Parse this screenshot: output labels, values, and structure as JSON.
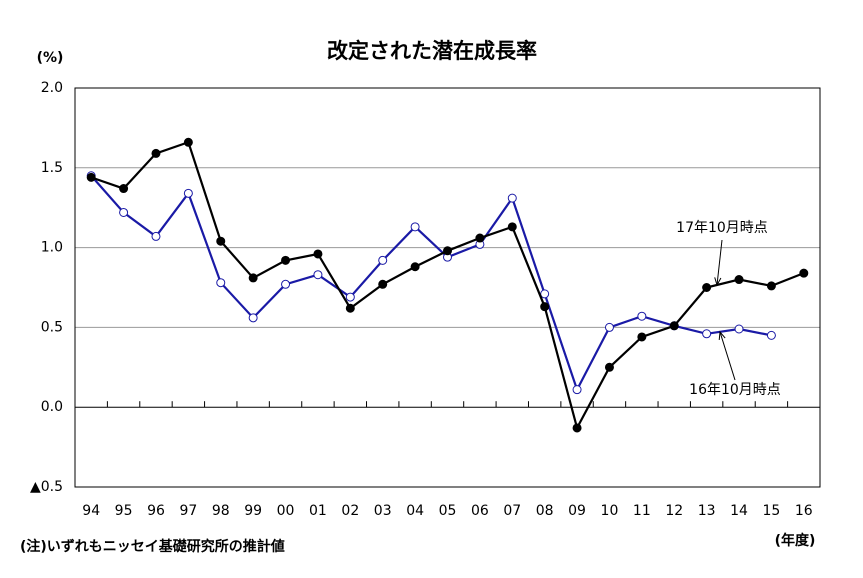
{
  "chart_data": {
    "type": "line",
    "title": "改定された潜在成長率",
    "y_unit": "(%)",
    "x_unit": "(年度)",
    "note": "(注)いずれもニッセイ基礎研究所の推計値",
    "categories": [
      "94",
      "95",
      "96",
      "97",
      "98",
      "99",
      "00",
      "01",
      "02",
      "03",
      "04",
      "05",
      "06",
      "07",
      "08",
      "09",
      "10",
      "11",
      "12",
      "13",
      "14",
      "15",
      "16"
    ],
    "series": [
      {
        "name": "17年10月時点",
        "color": "#000000",
        "marker": "filled",
        "values": [
          1.44,
          1.37,
          1.59,
          1.66,
          1.04,
          0.81,
          0.92,
          0.96,
          0.62,
          0.77,
          0.88,
          0.98,
          1.06,
          1.13,
          0.63,
          -0.13,
          0.25,
          0.44,
          0.51,
          0.75,
          0.8,
          0.76,
          0.84
        ]
      },
      {
        "name": "16年10月時点",
        "color": "#1a1aa6",
        "marker": "open",
        "values": [
          1.45,
          1.22,
          1.07,
          1.34,
          0.78,
          0.56,
          0.77,
          0.83,
          0.69,
          0.92,
          1.13,
          0.94,
          1.02,
          1.31,
          0.71,
          0.11,
          0.5,
          0.57,
          0.51,
          0.46,
          0.49,
          0.45,
          null
        ]
      }
    ],
    "ylim": [
      -0.5,
      2.0
    ],
    "yticks": [
      {
        "value": -0.5,
        "label": "▲0.5"
      },
      {
        "value": 0,
        "label": "0.0"
      },
      0.5,
      {
        "value": 1,
        "label": "1.0"
      },
      1.5,
      {
        "value": 2,
        "label": "2.0"
      }
    ],
    "grid": true
  }
}
